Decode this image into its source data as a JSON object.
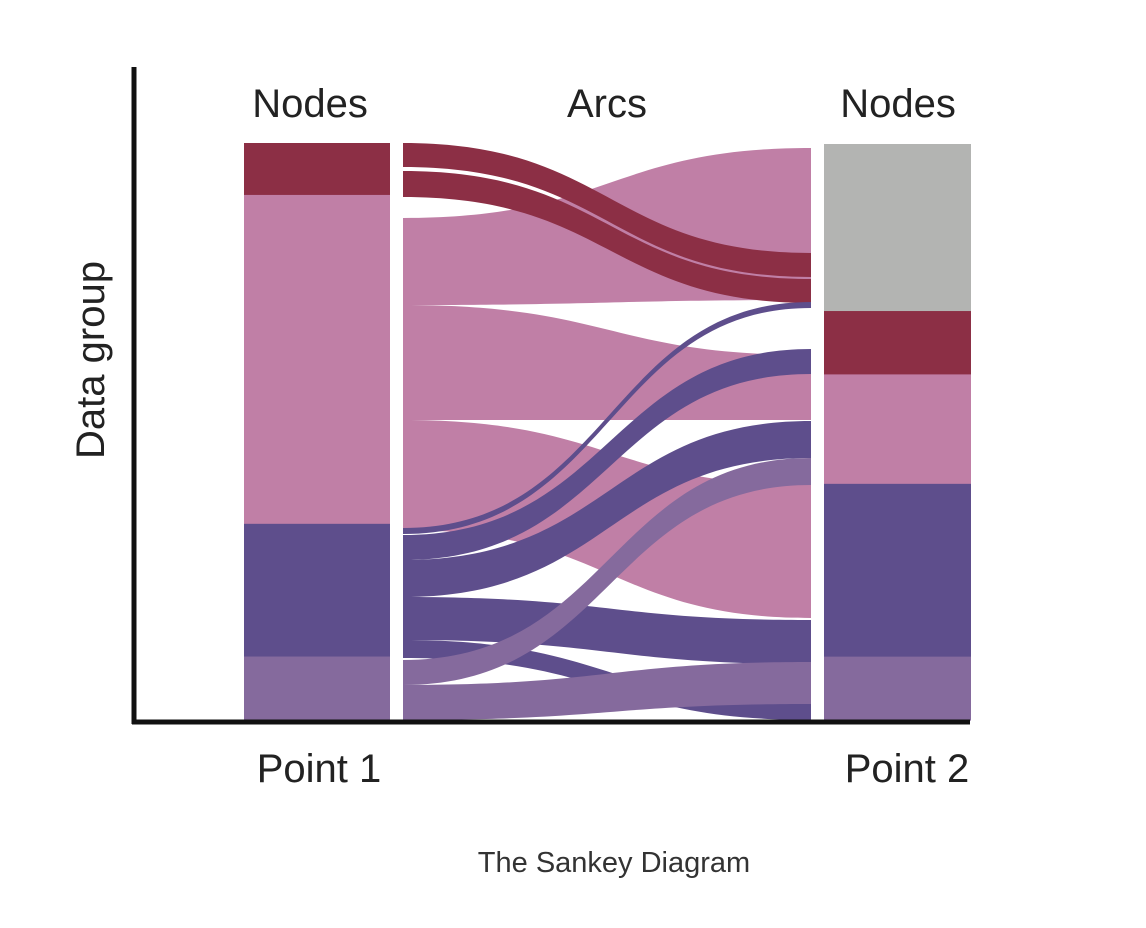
{
  "labels": {
    "left_nodes": "Nodes",
    "arcs": "Arcs",
    "right_nodes": "Nodes",
    "y_axis": "Data group",
    "point1": "Point 1",
    "point2": "Point 2",
    "caption": "The Sankey Diagram"
  },
  "colors": {
    "crimson": "#8c2f45",
    "pink": "#c07fa6",
    "purple": "#5e4e8c",
    "lavender": "#856a9d",
    "gray": "#b3b4b2",
    "axis": "#111111"
  },
  "left_nodes": [
    {
      "id": "L1",
      "color": "crimson",
      "value": 9
    },
    {
      "id": "L2",
      "color": "pink",
      "value": 57
    },
    {
      "id": "L3",
      "color": "purple",
      "value": 23
    },
    {
      "id": "L4",
      "color": "lavender",
      "value": 11
    }
  ],
  "right_nodes": [
    {
      "id": "R1",
      "color": "gray",
      "value": 29
    },
    {
      "id": "R2",
      "color": "crimson",
      "value": 11
    },
    {
      "id": "R3",
      "color": "pink",
      "value": 19
    },
    {
      "id": "R4",
      "color": "purple",
      "value": 30
    },
    {
      "id": "R5",
      "color": "lavender",
      "value": 11
    }
  ]
}
